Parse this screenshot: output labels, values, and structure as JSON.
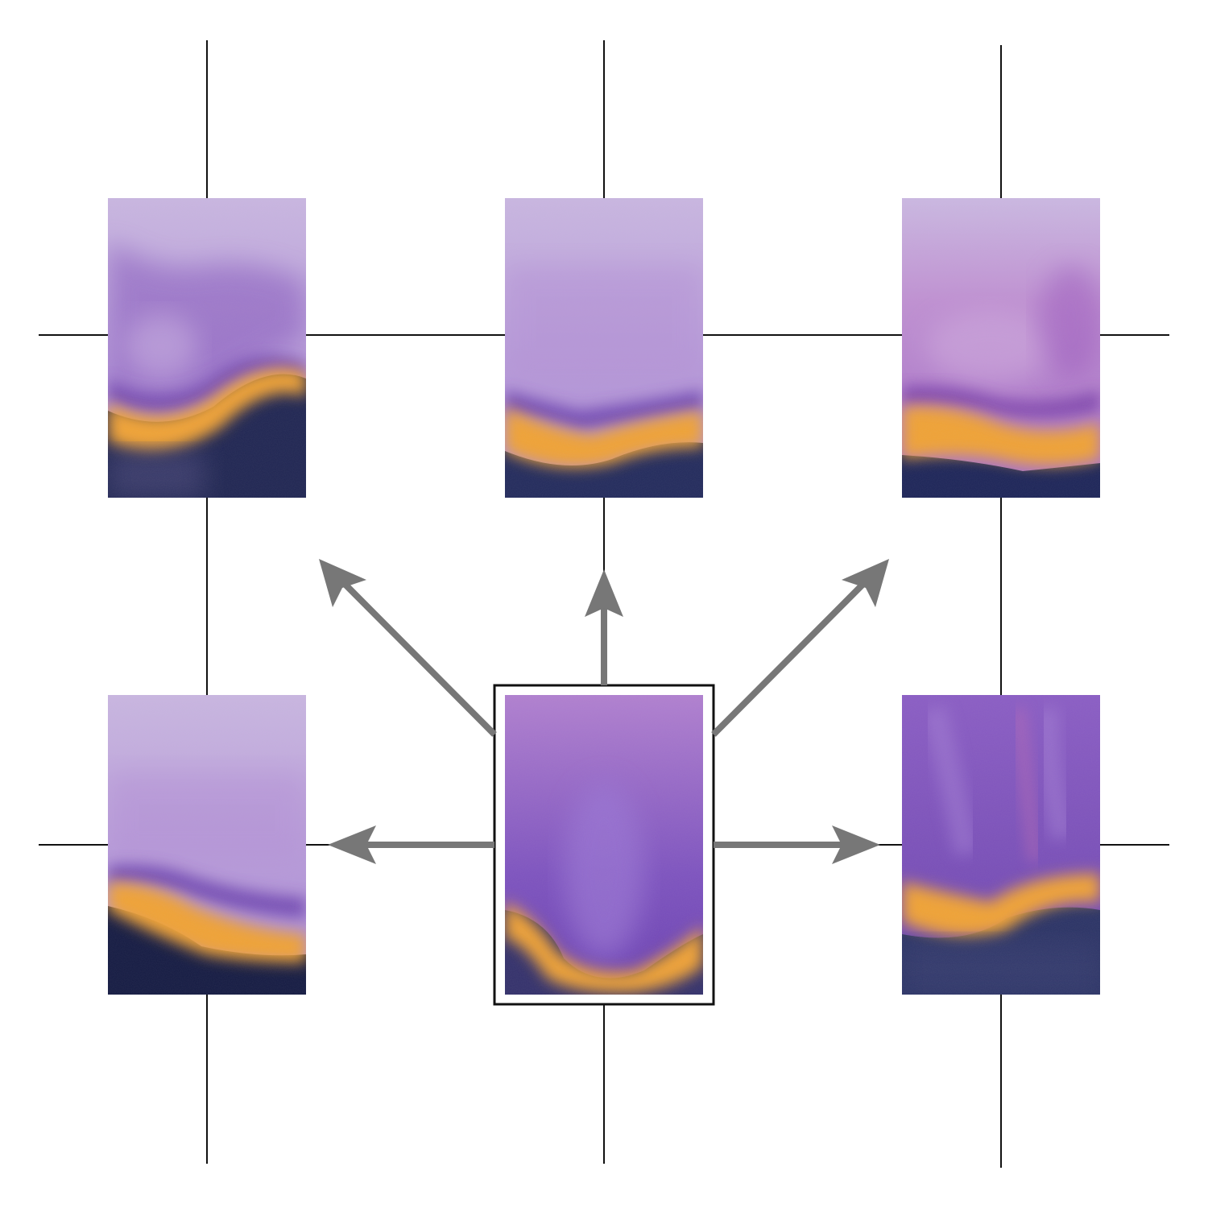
{
  "diagram": {
    "center_tile": "center-seed",
    "neighbor_tiles": [
      "top-left",
      "top-center",
      "top-right",
      "bottom-left",
      "bottom-right"
    ]
  },
  "colors": {
    "background": "#ffffff",
    "grid_line": "#111111",
    "arrow": "#777777",
    "frame": "#111111",
    "lavender": "#c8b4e0",
    "violet": "#8e62c8",
    "deep_purple": "#5c38a6",
    "orange": "#f0a033",
    "navy": "#1d2456"
  }
}
